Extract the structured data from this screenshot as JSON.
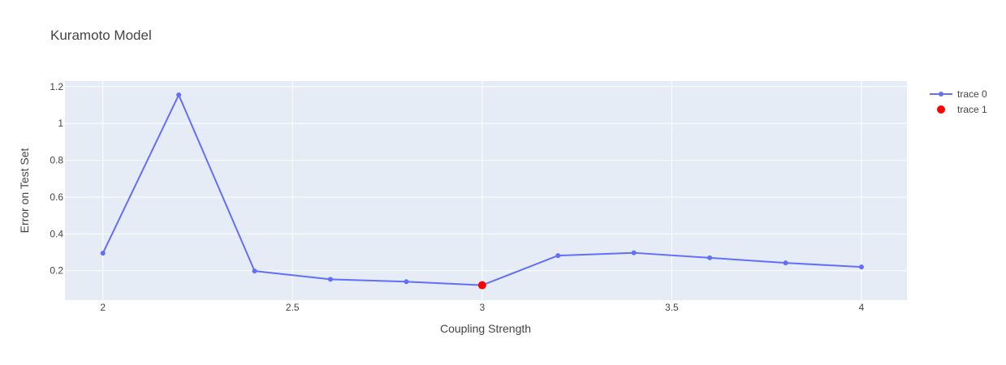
{
  "chart_data": {
    "type": "scatter",
    "title": "Kuramoto Model",
    "xlabel": "Coupling Strength",
    "ylabel": "Error on Test Set",
    "xlim": [
      1.9,
      4.12
    ],
    "ylim": [
      0.04,
      1.23
    ],
    "x_ticks": [
      "2",
      "2.5",
      "3",
      "3.5",
      "4"
    ],
    "y_ticks": [
      "0.2",
      "0.4",
      "0.6",
      "0.8",
      "1",
      "1.2"
    ],
    "grid": true,
    "legend_position": "top-right",
    "plot_background": "#e5ecf6",
    "series": [
      {
        "name": "trace 0",
        "mode": "lines+markers",
        "color": "#636efa",
        "x": [
          2.0,
          2.2,
          2.4,
          2.6,
          2.8,
          3.0,
          3.2,
          3.4,
          3.6,
          3.8,
          4.0
        ],
        "y": [
          0.295,
          1.155,
          0.198,
          0.153,
          0.14,
          0.121,
          0.282,
          0.297,
          0.27,
          0.242,
          0.22
        ]
      },
      {
        "name": "trace 1",
        "mode": "markers",
        "color": "#ff0000",
        "x": [
          3.0
        ],
        "y": [
          0.121
        ]
      }
    ]
  }
}
